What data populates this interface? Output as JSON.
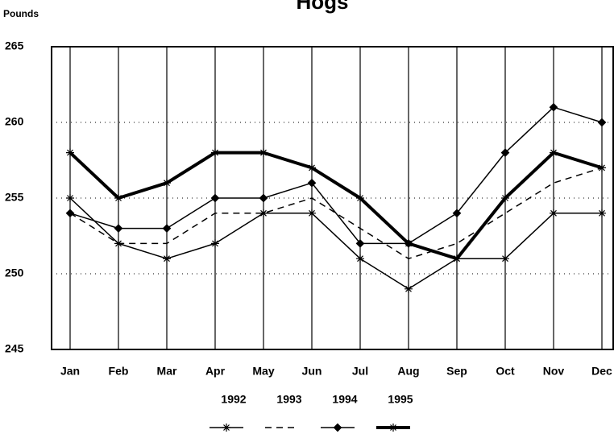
{
  "chart_data": {
    "type": "line",
    "title": "Hogs",
    "y_label": "Pounds",
    "categories": [
      "Jan",
      "Feb",
      "Mar",
      "Apr",
      "May",
      "Jun",
      "Jul",
      "Aug",
      "Sep",
      "Oct",
      "Nov",
      "Dec"
    ],
    "ylim": [
      245,
      265
    ],
    "yticks": [
      245,
      250,
      255,
      260,
      265
    ],
    "grid": true,
    "series": [
      {
        "name": "1992",
        "color": "#000000",
        "line_width": 1.5,
        "dashed": false,
        "marker": "asterisk",
        "values": [
          255,
          252,
          251,
          252,
          254,
          254,
          251,
          249,
          251,
          251,
          254,
          254
        ]
      },
      {
        "name": "1993",
        "color": "#000000",
        "line_width": 1.5,
        "dashed": true,
        "marker": "none",
        "values": [
          254,
          252,
          252,
          254,
          254,
          255,
          253,
          251,
          252,
          254,
          256,
          257
        ]
      },
      {
        "name": "1994",
        "color": "#000000",
        "line_width": 1.5,
        "dashed": false,
        "marker": "diamond",
        "values": [
          254,
          253,
          253,
          255,
          255,
          256,
          252,
          252,
          254,
          258,
          261,
          260
        ]
      },
      {
        "name": "1995",
        "color": "#000000",
        "line_width": 4,
        "dashed": false,
        "marker": "asterisk",
        "values": [
          258,
          255,
          256,
          258,
          258,
          257,
          255,
          252,
          251,
          255,
          258,
          257
        ]
      }
    ]
  }
}
